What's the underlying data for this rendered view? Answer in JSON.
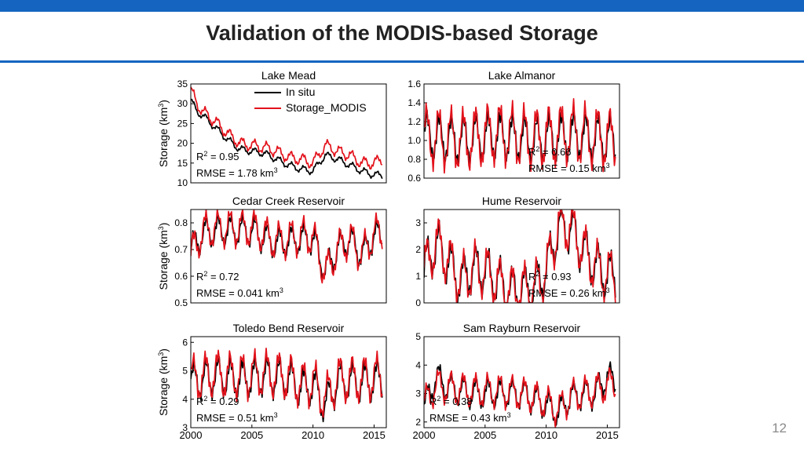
{
  "page": {
    "title": "Validation of the MODIS-based Storage",
    "page_number": "12"
  },
  "colors": {
    "accent": "#1565c0",
    "in_situ": "#000000",
    "modis": "#e3121b"
  },
  "chart_data": [
    {
      "type": "line",
      "title": "Lake Mead",
      "ylabel": "Storage (km³)",
      "ylim": [
        10,
        35
      ],
      "yticks": [
        "35",
        "30",
        "25",
        "20",
        "15",
        "10"
      ],
      "xlim": [
        2000,
        2016
      ],
      "xticks": [],
      "legend": {
        "position": "top-right",
        "entries": [
          "In situ",
          "Storage_MODIS"
        ]
      },
      "r2_label": "R",
      "r2_sup": "2",
      "r2_value": " = 0.95",
      "rmse_text": "RMSE = 1.78 km",
      "rmse_sup": "3",
      "stats_position": "bottom-left",
      "series": [
        {
          "name": "In situ",
          "color": "#000000",
          "anchors": [
            [
              2000,
              31
            ],
            [
              2000.5,
              28
            ],
            [
              2001,
              27
            ],
            [
              2002,
              24
            ],
            [
              2003,
              21
            ],
            [
              2004,
              18.5
            ],
            [
              2005,
              18
            ],
            [
              2006,
              17.5
            ],
            [
              2007,
              16
            ],
            [
              2008,
              14.5
            ],
            [
              2009,
              13.5
            ],
            [
              2010,
              13
            ],
            [
              2011,
              17
            ],
            [
              2012,
              16
            ],
            [
              2013,
              14.5
            ],
            [
              2014,
              13
            ],
            [
              2015,
              12
            ],
            [
              2015.7,
              12
            ]
          ],
          "amp": 0.8
        },
        {
          "name": "Storage_MODIS",
          "color": "#e3121b",
          "anchors": [
            [
              2000,
              33.5
            ],
            [
              2000.5,
              30
            ],
            [
              2001,
              28
            ],
            [
              2002,
              25.5
            ],
            [
              2003,
              22.5
            ],
            [
              2004,
              20
            ],
            [
              2005,
              19.5
            ],
            [
              2006,
              19
            ],
            [
              2007,
              18
            ],
            [
              2008,
              16.5
            ],
            [
              2009,
              16
            ],
            [
              2010,
              15
            ],
            [
              2011,
              19.5
            ],
            [
              2012,
              18
            ],
            [
              2013,
              17
            ],
            [
              2014,
              15
            ],
            [
              2015,
              15
            ],
            [
              2015.7,
              16
            ]
          ],
          "amp": 1.3
        }
      ]
    },
    {
      "type": "line",
      "title": "Lake Almanor",
      "ylabel": "",
      "ylim": [
        0.6,
        1.6
      ],
      "yticks": [
        "1.6",
        "1.4",
        "1.2",
        "1.0",
        "0.8",
        "0.6"
      ],
      "xlim": [
        2000,
        2016
      ],
      "xticks": [],
      "r2_label": "R",
      "r2_sup": "2",
      "r2_value": " = 0.66",
      "rmse_text": "RMSE = 0.15 km",
      "rmse_sup": "3",
      "stats_position": "bottom-right",
      "series": [
        {
          "name": "In situ",
          "color": "#000000",
          "anchors": [
            [
              2000,
              1.05
            ],
            [
              2003,
              1.0
            ],
            [
              2006,
              1.05
            ],
            [
              2009,
              1.0
            ],
            [
              2012,
              1.05
            ],
            [
              2015.7,
              1.0
            ]
          ],
          "amp": 0.22
        },
        {
          "name": "Storage_MODIS",
          "color": "#e3121b",
          "anchors": [
            [
              2000,
              1.05
            ],
            [
              2003,
              1.0
            ],
            [
              2006,
              1.08
            ],
            [
              2009,
              1.02
            ],
            [
              2012,
              1.08
            ],
            [
              2015.7,
              1.0
            ]
          ],
          "amp": 0.28
        }
      ]
    },
    {
      "type": "line",
      "title": "Cedar Creek Reservoir",
      "ylabel": "Storage (km³)",
      "ylim": [
        0.5,
        0.85
      ],
      "yticks": [
        "0.8",
        "0.7",
        "0.6",
        "0.5"
      ],
      "xlim": [
        2000,
        2016
      ],
      "xticks": [],
      "r2_label": "R",
      "r2_sup": "2",
      "r2_value": " = 0.72",
      "rmse_text": "RMSE = 0.041 km",
      "rmse_sup": "3",
      "stats_position": "bottom-left",
      "series": [
        {
          "name": "In situ",
          "color": "#000000",
          "anchors": [
            [
              2000,
              0.7
            ],
            [
              2001,
              0.76
            ],
            [
              2002,
              0.77
            ],
            [
              2005,
              0.77
            ],
            [
              2007,
              0.72
            ],
            [
              2009,
              0.74
            ],
            [
              2010,
              0.74
            ],
            [
              2011,
              0.62
            ],
            [
              2012,
              0.7
            ],
            [
              2013,
              0.74
            ],
            [
              2014,
              0.68
            ],
            [
              2015,
              0.75
            ],
            [
              2015.7,
              0.75
            ]
          ],
          "amp": 0.05
        },
        {
          "name": "Storage_MODIS",
          "color": "#e3121b",
          "anchors": [
            [
              2000,
              0.68
            ],
            [
              2001,
              0.77
            ],
            [
              2002,
              0.78
            ],
            [
              2005,
              0.78
            ],
            [
              2007,
              0.73
            ],
            [
              2009,
              0.75
            ],
            [
              2010,
              0.75
            ],
            [
              2011,
              0.61
            ],
            [
              2012,
              0.7
            ],
            [
              2013,
              0.74
            ],
            [
              2014,
              0.68
            ],
            [
              2015,
              0.76
            ],
            [
              2015.7,
              0.76
            ]
          ],
          "amp": 0.06
        }
      ]
    },
    {
      "type": "line",
      "title": "Hume Reservoir",
      "ylabel": "",
      "ylim": [
        0,
        3.5
      ],
      "yticks": [
        "3",
        "2",
        "1",
        "0"
      ],
      "xlim": [
        2000,
        2016
      ],
      "xticks": [],
      "r2_label": "R",
      "r2_sup": "2",
      "r2_value": " = 0.93",
      "rmse_text": "RMSE = 0.26 km",
      "rmse_sup": "3",
      "stats_position": "bottom-right",
      "series": [
        {
          "name": "In situ",
          "color": "#000000",
          "anchors": [
            [
              2000,
              1.2
            ],
            [
              2001,
              2.2
            ],
            [
              2002,
              1.5
            ],
            [
              2003,
              0.8
            ],
            [
              2004,
              1.3
            ],
            [
              2005,
              1.2
            ],
            [
              2006,
              0.8
            ],
            [
              2007,
              0.4
            ],
            [
              2008,
              0.5
            ],
            [
              2009,
              0.5
            ],
            [
              2010,
              1.2
            ],
            [
              2011,
              2.8
            ],
            [
              2012,
              2.8
            ],
            [
              2013,
              2.0
            ],
            [
              2014,
              1.4
            ],
            [
              2015,
              1.0
            ],
            [
              2015.7,
              1.1
            ]
          ],
          "amp": 0.8
        },
        {
          "name": "Storage_MODIS",
          "color": "#e3121b",
          "anchors": [
            [
              2000,
              1.2
            ],
            [
              2001,
              2.3
            ],
            [
              2002,
              1.6
            ],
            [
              2003,
              0.8
            ],
            [
              2004,
              1.3
            ],
            [
              2005,
              1.2
            ],
            [
              2006,
              0.8
            ],
            [
              2007,
              0.4
            ],
            [
              2008,
              0.5
            ],
            [
              2009,
              0.5
            ],
            [
              2010,
              1.2
            ],
            [
              2011,
              2.9
            ],
            [
              2012,
              2.9
            ],
            [
              2013,
              2.0
            ],
            [
              2014,
              1.4
            ],
            [
              2015,
              1.0
            ],
            [
              2015.7,
              1.1
            ]
          ],
          "amp": 0.85
        }
      ]
    },
    {
      "type": "line",
      "title": "Toledo Bend Reservoir",
      "ylabel": "Storage (km³)",
      "ylim": [
        3,
        6.2
      ],
      "yticks": [
        "6",
        "5",
        "4",
        "3"
      ],
      "xlim": [
        2000,
        2016
      ],
      "xticks": [
        "2000",
        "2005",
        "2010",
        "2015"
      ],
      "r2_label": "R",
      "r2_sup": "2",
      "r2_value": " = 0.29",
      "rmse_text": "RMSE = 0.51 km",
      "rmse_sup": "3",
      "stats_position": "bottom-left",
      "series": [
        {
          "name": "In situ",
          "color": "#000000",
          "anchors": [
            [
              2000,
              4.6
            ],
            [
              2002,
              4.8
            ],
            [
              2004,
              4.7
            ],
            [
              2006,
              4.8
            ],
            [
              2008,
              4.7
            ],
            [
              2009,
              4.4
            ],
            [
              2010,
              4.5
            ],
            [
              2011,
              3.8
            ],
            [
              2012,
              4.6
            ],
            [
              2014,
              4.6
            ],
            [
              2015.7,
              4.7
            ]
          ],
          "amp": 0.6
        },
        {
          "name": "Storage_MODIS",
          "color": "#e3121b",
          "anchors": [
            [
              2000,
              4.7
            ],
            [
              2002,
              4.9
            ],
            [
              2004,
              4.8
            ],
            [
              2006,
              4.9
            ],
            [
              2008,
              4.8
            ],
            [
              2009,
              4.5
            ],
            [
              2010,
              4.6
            ],
            [
              2011,
              4.0
            ],
            [
              2012,
              4.7
            ],
            [
              2014,
              4.7
            ],
            [
              2015.7,
              4.8
            ]
          ],
          "amp": 0.7
        }
      ]
    },
    {
      "type": "line",
      "title": "Sam Rayburn Reservoir",
      "ylabel": "",
      "ylim": [
        1.8,
        5
      ],
      "yticks": [
        "5",
        "4",
        "3",
        "2"
      ],
      "xlim": [
        2000,
        2016
      ],
      "xticks": [
        "2000",
        "2005",
        "2010",
        "2015"
      ],
      "r2_label": "R",
      "r2_sup": "2",
      "r2_value": " = 0.38",
      "rmse_text": "RMSE = 0.43 km",
      "rmse_sup": "3",
      "stats_position": "bottom-left",
      "series": [
        {
          "name": "In situ",
          "color": "#000000",
          "anchors": [
            [
              2000,
              2.5
            ],
            [
              2001,
              3.6
            ],
            [
              2002,
              3.2
            ],
            [
              2004,
              3.0
            ],
            [
              2006,
              3.0
            ],
            [
              2008,
              3.0
            ],
            [
              2010,
              2.6
            ],
            [
              2011,
              2.3
            ],
            [
              2012,
              2.9
            ],
            [
              2014,
              3.0
            ],
            [
              2015,
              3.6
            ],
            [
              2015.7,
              3.4
            ]
          ],
          "amp": 0.45
        },
        {
          "name": "Storage_MODIS",
          "color": "#e3121b",
          "anchors": [
            [
              2000,
              2.6
            ],
            [
              2001,
              3.3
            ],
            [
              2002,
              3.2
            ],
            [
              2004,
              3.1
            ],
            [
              2006,
              3.1
            ],
            [
              2008,
              3.0
            ],
            [
              2010,
              2.7
            ],
            [
              2011,
              2.4
            ],
            [
              2012,
              2.9
            ],
            [
              2014,
              3.1
            ],
            [
              2015,
              3.3
            ],
            [
              2015.7,
              3.3
            ]
          ],
          "amp": 0.5
        }
      ]
    }
  ]
}
